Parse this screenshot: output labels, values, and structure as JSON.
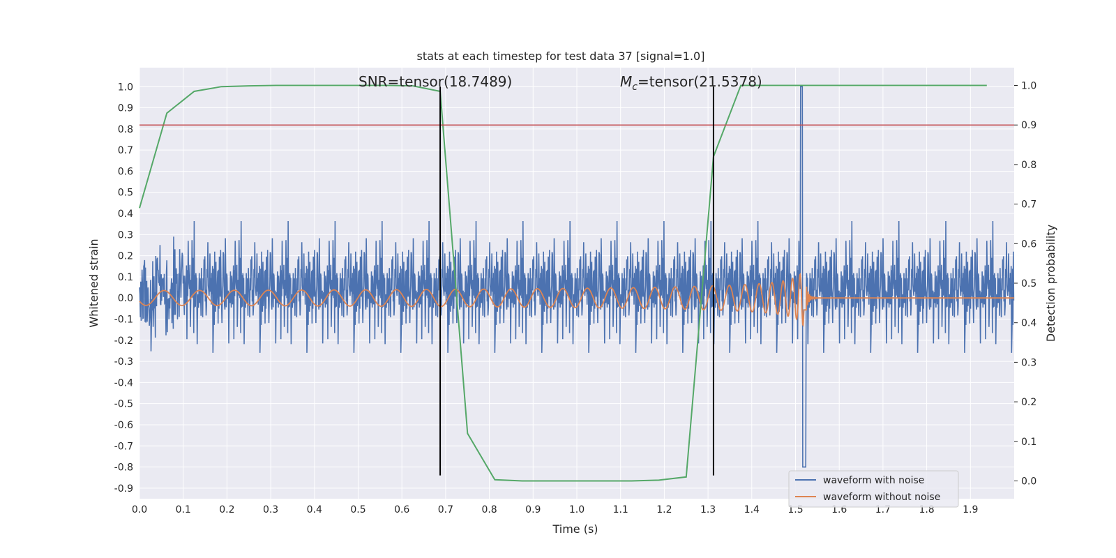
{
  "chart_data": {
    "type": "line",
    "title": "stats at each timestep for test data 37 [signal=1.0]",
    "xlabel": "Time (s)",
    "ylabel": "Whitened strain",
    "y2label": "Detection probability",
    "xlim": [
      0.0,
      2.0
    ],
    "ylim": [
      -0.95,
      1.09
    ],
    "y2lim": [
      -0.045,
      1.045
    ],
    "x_ticks": [
      "0.0",
      "0.1",
      "0.2",
      "0.3",
      "0.4",
      "0.5",
      "0.6",
      "0.7",
      "0.8",
      "0.9",
      "1.0",
      "1.1",
      "1.2",
      "1.3",
      "1.4",
      "1.5",
      "1.6",
      "1.7",
      "1.8",
      "1.9"
    ],
    "y_ticks": [
      "1.0",
      "0.9",
      "0.8",
      "0.7",
      "0.6",
      "0.5",
      "0.4",
      "0.3",
      "0.2",
      "0.1",
      "0.0",
      "-0.1",
      "-0.2",
      "-0.3",
      "-0.4",
      "-0.5",
      "-0.6",
      "-0.7",
      "-0.8",
      "-0.9"
    ],
    "y2_ticks": [
      "1.0",
      "0.9",
      "0.8",
      "0.7",
      "0.6",
      "0.5",
      "0.4",
      "0.3",
      "0.2",
      "0.1",
      "0.0"
    ],
    "grid": true,
    "legend_position": "lower right",
    "annotations": {
      "snr": "SNR=tensor(18.7489)",
      "mc_symbol": "M",
      "mc_sub": "c",
      "mc_value": "=tensor(21.5378)"
    },
    "vertical_lines_x": [
      0.6875,
      1.3125
    ],
    "threshold": {
      "y2": 0.9
    },
    "series": [
      {
        "name": "waveform with noise",
        "color": "#4c72b0",
        "axis": "left",
        "kind": "noise"
      },
      {
        "name": "waveform without noise",
        "color": "#dd8452",
        "axis": "left",
        "kind": "chirp"
      },
      {
        "color": "#55a868",
        "axis": "right",
        "kind": "probability",
        "x": [
          0.0,
          0.0625,
          0.125,
          0.1875,
          0.25,
          0.3125,
          0.375,
          0.4375,
          0.5,
          0.5625,
          0.625,
          0.6875,
          0.75,
          0.8125,
          0.875,
          0.9375,
          1.0,
          1.0625,
          1.125,
          1.1875,
          1.25,
          1.3125,
          1.375,
          1.4375,
          1.5,
          1.5625,
          1.625,
          1.6875,
          1.75,
          1.8125,
          1.875,
          1.9375
        ],
        "values": [
          0.69,
          0.93,
          0.985,
          0.997,
          0.999,
          1.0,
          1.0,
          1.0,
          1.0,
          1.0,
          0.999,
          0.985,
          0.12,
          0.003,
          0.0,
          0.0,
          0.0,
          0.0,
          0.0,
          0.002,
          0.01,
          0.82,
          1.0,
          1.0,
          1.0,
          1.0,
          1.0,
          1.0,
          1.0,
          1.0,
          1.0,
          1.0
        ]
      }
    ],
    "colors": {
      "background": "#eaeaf2",
      "grid": "#ffffff",
      "threshold": "#c44e52",
      "vline": "#000000"
    }
  }
}
